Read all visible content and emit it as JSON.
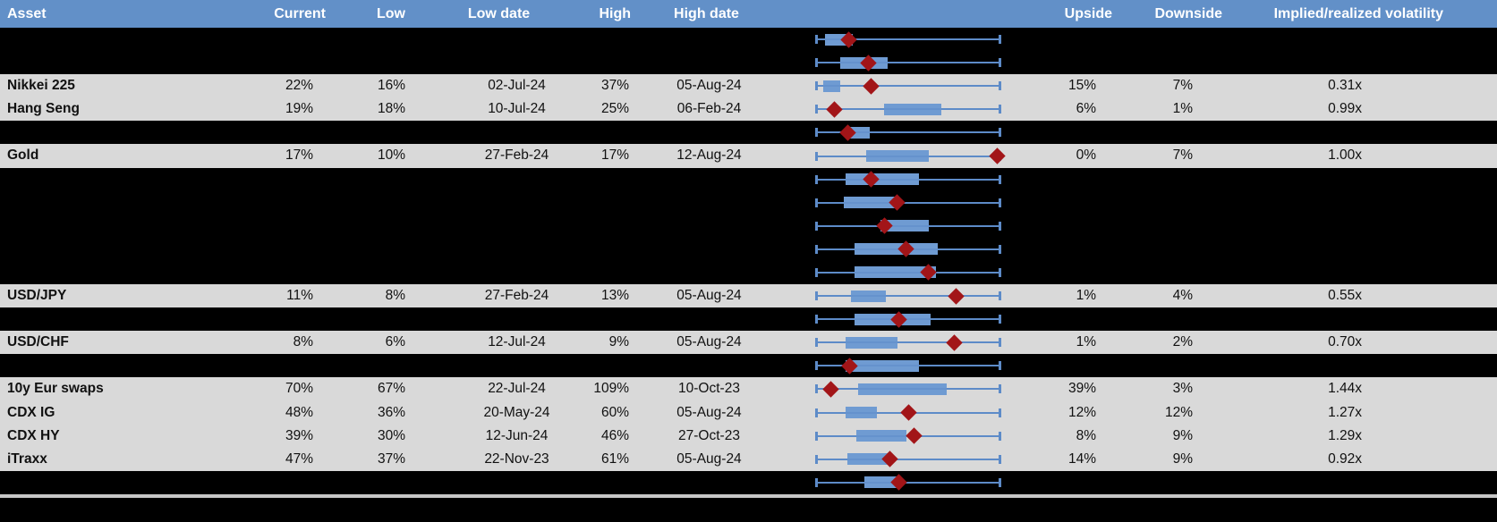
{
  "header": {
    "columns": [
      "Asset",
      "Current",
      "Low",
      "Low date",
      "High",
      "High date",
      "Upside",
      "Downside",
      "Implied/realized volatility"
    ]
  },
  "colors": {
    "header_bg": "#6290C8",
    "header_text": "#FFFFFF",
    "visible_row_bg": "#D9D9D9",
    "hidden_row_bg": "#000000",
    "whisker_blue": "#5D8BC8",
    "box_blue": "#6F9BD2",
    "marker_red": "#A21518",
    "value_text": "#111111",
    "separator_gray": "#C6C6C6"
  },
  "chart_data": {
    "type": "table",
    "title": "Implied volatility ranges by asset (box = inner range of 1y vol, whisker = low-high, diamond = current level)",
    "chart_column_scale": "normalized 0 = Low, 1 = High",
    "rows": [
      {
        "asset": "",
        "box": [
          0.05,
          0.2
        ],
        "marker": 0.175
      },
      {
        "asset": "",
        "box": [
          0.13,
          0.39
        ],
        "marker": 0.286
      },
      {
        "asset": "Nikkei 225",
        "current": "22%",
        "low": "16%",
        "low_date": "02-Jul-24",
        "high": "37%",
        "high_date": "05-Aug-24",
        "upside": "15%",
        "downside": "7%",
        "implied_realized": "0.31x",
        "box": [
          0.04,
          0.13
        ],
        "marker": 0.3
      },
      {
        "asset": "Hang Seng",
        "current": "19%",
        "low": "18%",
        "low_date": "10-Jul-24",
        "high": "25%",
        "high_date": "06-Feb-24",
        "upside": "6%",
        "downside": "1%",
        "implied_realized": "0.99x",
        "box": [
          0.37,
          0.68
        ],
        "marker": 0.1
      },
      {
        "asset": "",
        "box": [
          0.16,
          0.29
        ],
        "marker": 0.17
      },
      {
        "asset": "Gold",
        "current": "17%",
        "low": "10%",
        "low_date": "27-Feb-24",
        "high": "17%",
        "high_date": "12-Aug-24",
        "upside": "0%",
        "downside": "7%",
        "implied_realized": "1.00x",
        "box": [
          0.27,
          0.61
        ],
        "marker": 0.985
      },
      {
        "asset": "",
        "box": [
          0.16,
          0.56
        ],
        "marker": 0.3
      },
      {
        "asset": "",
        "box": [
          0.15,
          0.44
        ],
        "marker": 0.44
      },
      {
        "asset": "",
        "box": [
          0.35,
          0.61
        ],
        "marker": 0.37
      },
      {
        "asset": "",
        "box": [
          0.21,
          0.66
        ],
        "marker": 0.49
      },
      {
        "asset": "",
        "box": [
          0.21,
          0.65
        ],
        "marker": 0.61
      },
      {
        "asset": "USD/JPY",
        "current": "11%",
        "low": "8%",
        "low_date": "27-Feb-24",
        "high": "13%",
        "high_date": "05-Aug-24",
        "upside": "1%",
        "downside": "4%",
        "implied_realized": "0.55x",
        "box": [
          0.19,
          0.38
        ],
        "marker": 0.76
      },
      {
        "asset": "",
        "box": [
          0.21,
          0.62
        ],
        "marker": 0.45
      },
      {
        "asset": "USD/CHF",
        "current": "8%",
        "low": "6%",
        "low_date": "12-Jul-24",
        "high": "9%",
        "high_date": "05-Aug-24",
        "upside": "1%",
        "downside": "2%",
        "implied_realized": "0.70x",
        "box": [
          0.16,
          0.44
        ],
        "marker": 0.75
      },
      {
        "asset": "",
        "box": [
          0.16,
          0.56
        ],
        "marker": 0.18
      },
      {
        "asset": "10y Eur swaps",
        "current": "70%",
        "low": "67%",
        "low_date": "22-Jul-24",
        "high": "109%",
        "high_date": "10-Oct-23",
        "upside": "39%",
        "downside": "3%",
        "implied_realized": "1.44x",
        "box": [
          0.23,
          0.71
        ],
        "marker": 0.08
      },
      {
        "asset": "CDX IG",
        "current": "48%",
        "low": "36%",
        "low_date": "20-May-24",
        "high": "60%",
        "high_date": "05-Aug-24",
        "upside": "12%",
        "downside": "12%",
        "implied_realized": "1.27x",
        "box": [
          0.16,
          0.33
        ],
        "marker": 0.5
      },
      {
        "asset": "CDX HY",
        "current": "39%",
        "low": "30%",
        "low_date": "12-Jun-24",
        "high": "46%",
        "high_date": "27-Oct-23",
        "upside": "8%",
        "downside": "9%",
        "implied_realized": "1.29x",
        "box": [
          0.22,
          0.49
        ],
        "marker": 0.53
      },
      {
        "asset": "iTraxx",
        "current": "47%",
        "low": "37%",
        "low_date": "22-Nov-23",
        "high": "61%",
        "high_date": "05-Aug-24",
        "upside": "14%",
        "downside": "9%",
        "implied_realized": "0.92x",
        "box": [
          0.17,
          0.39
        ],
        "marker": 0.4
      },
      {
        "asset": "",
        "box": [
          0.26,
          0.44
        ],
        "marker": 0.45
      }
    ]
  }
}
